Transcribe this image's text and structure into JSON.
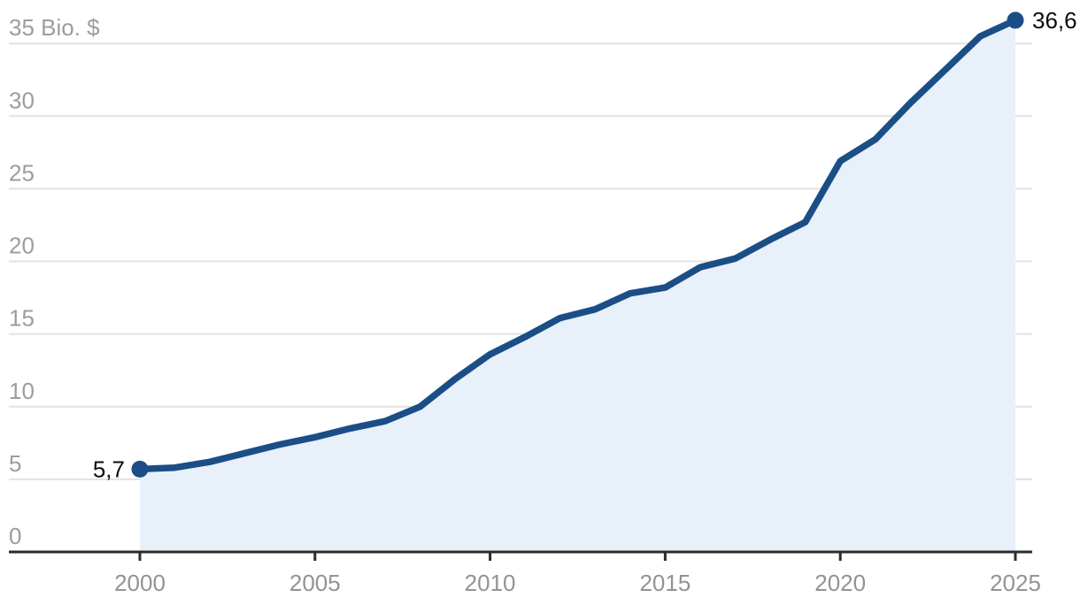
{
  "chart_data": {
    "type": "area",
    "title": "",
    "unit": "Bio. $",
    "x": [
      2000,
      2001,
      2002,
      2003,
      2004,
      2005,
      2006,
      2007,
      2008,
      2009,
      2010,
      2011,
      2012,
      2013,
      2014,
      2015,
      2016,
      2017,
      2018,
      2019,
      2020,
      2021,
      2022,
      2023,
      2024,
      2025
    ],
    "values": [
      5.7,
      5.8,
      6.2,
      6.8,
      7.4,
      7.9,
      8.5,
      9.0,
      10.0,
      11.9,
      13.6,
      14.8,
      16.1,
      16.7,
      17.8,
      18.2,
      19.6,
      20.2,
      21.5,
      22.7,
      26.9,
      28.4,
      30.9,
      33.2,
      35.5,
      36.6
    ],
    "first_point_label": "5,7",
    "last_point_label": "36,6",
    "xlim": [
      2000,
      2025
    ],
    "ylim": [
      0,
      38
    ],
    "grid": "horizontal",
    "legend": "none",
    "y_ticks": {
      "values": [
        0,
        5,
        10,
        15,
        20,
        25,
        30,
        35
      ],
      "labels": [
        "0",
        "5",
        "10",
        "15",
        "20",
        "25",
        "30",
        "35 Bio. $"
      ]
    },
    "x_ticks": {
      "values": [
        2000,
        2005,
        2010,
        2015,
        2020,
        2025
      ],
      "labels": [
        "2000",
        "2005",
        "2010",
        "2015",
        "2020",
        "2025"
      ]
    },
    "colors": {
      "line": "#1b4e86",
      "area_fill": "#e8f1f9",
      "gridline": "#e2e2e2",
      "axis": "#2b2b2b",
      "y_tick_label": "#9d9d9d",
      "x_tick_label": "#939393",
      "point_label": "#0d0d0d",
      "background": "#ffffff"
    }
  }
}
